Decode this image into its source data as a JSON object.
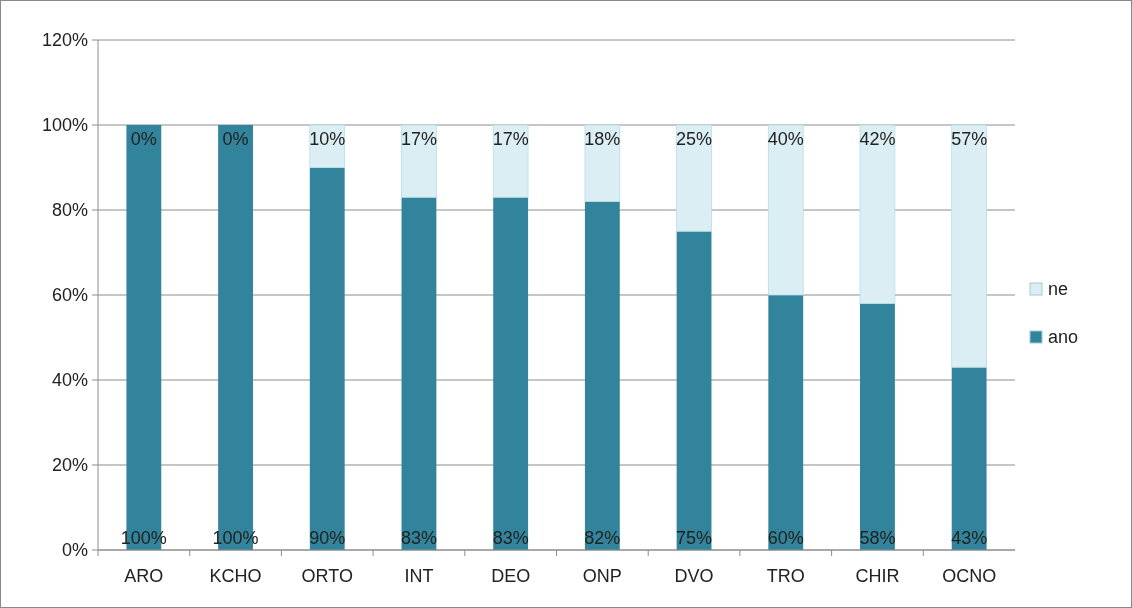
{
  "chart_data": {
    "type": "bar",
    "stacked": true,
    "categories": [
      "ARO",
      "KCHO",
      "ORTO",
      "INT",
      "DEO",
      "ONP",
      "DVO",
      "TRO",
      "CHIR",
      "OCNO"
    ],
    "series": [
      {
        "name": "ano",
        "color": "#31849b",
        "values": [
          100,
          100,
          90,
          83,
          83,
          82,
          75,
          60,
          58,
          43
        ],
        "value_labels": [
          "100%",
          "100%",
          "90%",
          "83%",
          "83%",
          "82%",
          "75%",
          "60%",
          "58%",
          "43%"
        ]
      },
      {
        "name": "ne",
        "color": "#dbeef3",
        "values": [
          0,
          0,
          10,
          17,
          17,
          18,
          25,
          40,
          42,
          57
        ],
        "value_labels": [
          "0%",
          "0%",
          "10%",
          "17%",
          "17%",
          "18%",
          "25%",
          "40%",
          "42%",
          "57%"
        ]
      }
    ],
    "ylim": [
      0,
      120
    ],
    "yticks": [
      {
        "value": 0,
        "label": "0%"
      },
      {
        "value": 20,
        "label": "20%"
      },
      {
        "value": 40,
        "label": "40%"
      },
      {
        "value": 60,
        "label": "60%"
      },
      {
        "value": 80,
        "label": "80%"
      },
      {
        "value": 100,
        "label": "100%"
      },
      {
        "value": 120,
        "label": "120%"
      }
    ],
    "grid": "y",
    "legend": "right"
  }
}
